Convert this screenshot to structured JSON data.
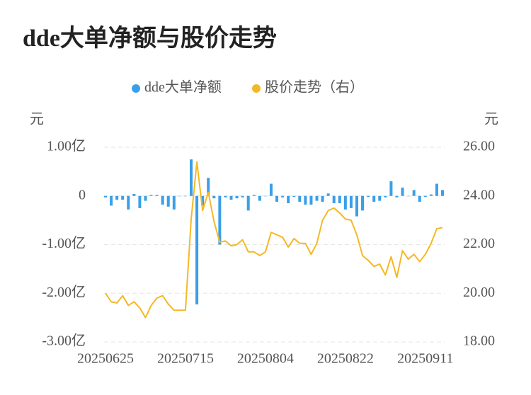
{
  "chart_data": {
    "type": "bar-line",
    "title": "dde大单净额与股价走势",
    "y_unit": "元",
    "y2_unit": "元",
    "categories": [
      "20250625",
      null,
      null,
      null,
      null,
      null,
      null,
      null,
      null,
      null,
      null,
      null,
      null,
      null,
      "20250715",
      null,
      null,
      null,
      null,
      null,
      null,
      null,
      null,
      null,
      null,
      null,
      null,
      null,
      "20250804",
      null,
      null,
      null,
      null,
      null,
      null,
      null,
      null,
      null,
      null,
      null,
      null,
      null,
      "20250822",
      null,
      null,
      null,
      null,
      null,
      null,
      null,
      null,
      null,
      null,
      null,
      null,
      null,
      "20250911",
      null,
      null,
      null
    ],
    "ylim": [
      -3,
      1
    ],
    "yticks": [
      {
        "value": 1,
        "label": "1.00亿"
      },
      0,
      {
        "value": -1,
        "label": "-1.00亿"
      },
      {
        "value": -2,
        "label": "-2.00亿"
      },
      {
        "value": -3,
        "label": "-3.00亿"
      }
    ],
    "y2lim": [
      18,
      26
    ],
    "y2ticks": [
      {
        "value": 26,
        "label": "26.00"
      },
      {
        "value": 24,
        "label": "24.00"
      },
      {
        "value": 22,
        "label": "22.00"
      },
      {
        "value": 20,
        "label": "20.00"
      },
      {
        "value": 18,
        "label": "18.00"
      }
    ],
    "grid": true,
    "series": [
      {
        "name": "dde大单净额",
        "type": "bar",
        "color": "#3a9fe8",
        "values": [
          -0.03,
          -0.2,
          -0.08,
          -0.08,
          -0.28,
          0.04,
          -0.25,
          -0.1,
          0.02,
          0.02,
          -0.18,
          -0.22,
          -0.28,
          0,
          0,
          0.75,
          -2.23,
          -0.2,
          0.37,
          -0.05,
          -1.0,
          -0.03,
          -0.08,
          -0.05,
          -0.03,
          -0.3,
          0.02,
          -0.1,
          0,
          0.25,
          -0.12,
          -0.03,
          -0.15,
          -0.02,
          -0.12,
          -0.18,
          -0.18,
          -0.1,
          -0.12,
          0.05,
          -0.15,
          -0.15,
          -0.28,
          -0.25,
          -0.42,
          -0.3,
          -0.02,
          -0.12,
          -0.1,
          -0.03,
          0.3,
          -0.03,
          0.17,
          0,
          0.12,
          -0.12,
          -0.02,
          0.03,
          0.25,
          0.12
        ]
      },
      {
        "name": "股价走势（右）",
        "type": "line",
        "axis": "y2",
        "color": "#f5b824",
        "values": [
          20.0,
          19.65,
          19.6,
          19.9,
          19.5,
          19.65,
          19.4,
          19.0,
          19.5,
          19.8,
          19.9,
          19.55,
          19.3,
          19.3,
          19.3,
          23.05,
          25.4,
          23.4,
          24.15,
          22.95,
          22.1,
          22.15,
          21.95,
          22.0,
          22.2,
          21.7,
          21.7,
          21.55,
          21.7,
          22.5,
          22.4,
          22.3,
          21.9,
          22.25,
          22.05,
          22.05,
          21.6,
          22.05,
          23.0,
          23.4,
          23.5,
          23.3,
          23.05,
          23.0,
          22.4,
          21.55,
          21.35,
          21.1,
          21.2,
          20.75,
          21.5,
          20.65,
          21.75,
          21.4,
          21.6,
          21.3,
          21.6,
          22.05,
          22.65,
          22.7
        ]
      }
    ]
  }
}
